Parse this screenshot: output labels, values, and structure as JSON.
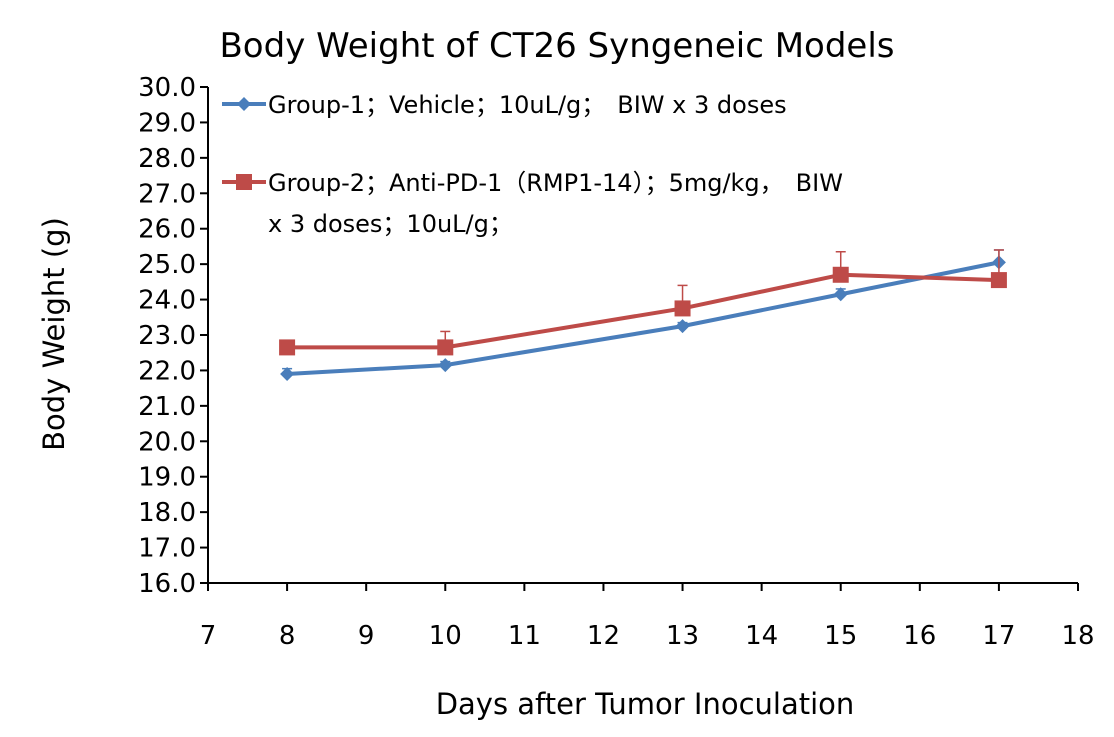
{
  "chart_data": {
    "type": "line",
    "title": "Body Weight of CT26 Syngeneic Models",
    "xlabel": "Days after Tumor Inoculation",
    "ylabel": "Body Weight (g)",
    "xlim": [
      7,
      18
    ],
    "ylim": [
      16.0,
      30.0
    ],
    "x_ticks": [
      "7",
      "8",
      "9",
      "10",
      "11",
      "12",
      "13",
      "14",
      "15",
      "16",
      "17",
      "18"
    ],
    "y_ticks": [
      "16.0",
      "17.0",
      "18.0",
      "19.0",
      "20.0",
      "21.0",
      "22.0",
      "23.0",
      "24.0",
      "25.0",
      "26.0",
      "27.0",
      "28.0",
      "29.0",
      "30.0"
    ],
    "grid": false,
    "legend_position": "top-left",
    "series": [
      {
        "name": "Group-1；Vehicle；10uL/g；　BIW x 3 doses",
        "legend_lines": [
          "Group-1；Vehicle；10uL/g；　BIW x 3 doses"
        ],
        "color": "#4a7ebb",
        "marker": "diamond",
        "x": [
          8,
          10,
          13,
          15,
          17
        ],
        "values": [
          21.9,
          22.15,
          23.25,
          24.15,
          25.05
        ],
        "errors": [
          0.15,
          0.1,
          0.1,
          0.15,
          0.35
        ]
      },
      {
        "name": "Group-2；Anti-PD-1（RMP1-14）；5mg/kg，　BIW x 3 doses；10uL/g；",
        "legend_lines": [
          "Group-2；Anti-PD-1（RMP1-14）；5mg/kg，　BIW",
          "x 3 doses；10uL/g；"
        ],
        "color": "#be4b48",
        "marker": "square",
        "x": [
          8,
          10,
          13,
          15,
          17
        ],
        "values": [
          22.65,
          22.65,
          23.75,
          24.7,
          24.55
        ],
        "errors": [
          0.15,
          0.45,
          0.65,
          0.65,
          0.85
        ]
      }
    ]
  }
}
